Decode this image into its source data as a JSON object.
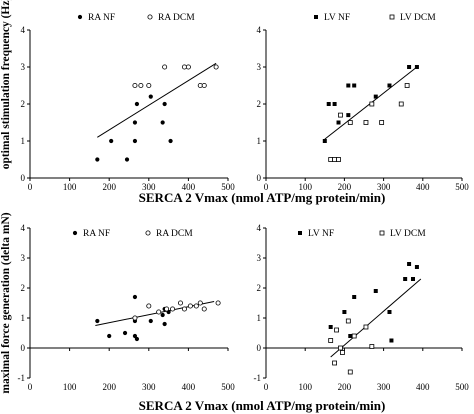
{
  "figure": {
    "x_axis_label_top": "SERCA 2 Vmax (nmol ATP/mg protein/min)",
    "x_axis_label_bottom": "SERCA 2 Vmax (nmol ATP/mg protein/min)",
    "y_axis_label_top": "optimal stimulation frequency (Hz)",
    "y_axis_label_bottom": "maximal force generation (delta mN)"
  },
  "chart_data": [
    {
      "type": "scatter",
      "panel": "top-left",
      "xlim": [
        0,
        500
      ],
      "ylim": [
        0,
        4
      ],
      "x_ticks": [
        "0",
        "100",
        "200",
        "300",
        "400",
        "500"
      ],
      "y_ticks": [
        "0",
        "1",
        "2",
        "3",
        "4"
      ],
      "legend": [
        "RA NF",
        "RA DCM"
      ],
      "series": [
        {
          "name": "RA NF",
          "marker": "filled-circle",
          "points": [
            [
              170,
              0.5
            ],
            [
              205,
              1.0
            ],
            [
              245,
              0.5
            ],
            [
              265,
              1.0
            ],
            [
              265,
              1.5
            ],
            [
              270,
              2.0
            ],
            [
              305,
              2.2
            ],
            [
              335,
              1.5
            ],
            [
              340,
              2.0
            ],
            [
              355,
              1.0
            ]
          ]
        },
        {
          "name": "RA DCM",
          "marker": "open-circle",
          "points": [
            [
              265,
              2.5
            ],
            [
              280,
              2.5
            ],
            [
              300,
              2.5
            ],
            [
              340,
              3.0
            ],
            [
              390,
              3.0
            ],
            [
              400,
              3.0
            ],
            [
              430,
              2.5
            ],
            [
              440,
              2.5
            ],
            [
              470,
              3.0
            ]
          ]
        }
      ],
      "trendline": [
        [
          170,
          1.1
        ],
        [
          470,
          3.1
        ]
      ]
    },
    {
      "type": "scatter",
      "panel": "top-right",
      "xlim": [
        0,
        500
      ],
      "ylim": [
        0,
        4
      ],
      "x_ticks": [
        "0",
        "100",
        "200",
        "300",
        "400",
        "500"
      ],
      "y_ticks": [
        "0",
        "1",
        "2",
        "3",
        "4"
      ],
      "legend": [
        "LV NF",
        "LV DCM"
      ],
      "series": [
        {
          "name": "LV NF",
          "marker": "filled-square",
          "points": [
            [
              150,
              1.0
            ],
            [
              160,
              2.0
            ],
            [
              175,
              2.0
            ],
            [
              185,
              1.5
            ],
            [
              210,
              2.5
            ],
            [
              225,
              2.5
            ],
            [
              280,
              2.2
            ],
            [
              315,
              2.5
            ],
            [
              360,
              2.5
            ],
            [
              365,
              3.0
            ],
            [
              385,
              3.0
            ],
            [
              210,
              1.7
            ]
          ]
        },
        {
          "name": "LV DCM",
          "marker": "open-square",
          "points": [
            [
              165,
              0.5
            ],
            [
              175,
              0.5
            ],
            [
              185,
              0.5
            ],
            [
              190,
              1.7
            ],
            [
              215,
              1.5
            ],
            [
              255,
              1.5
            ],
            [
              270,
              2.0
            ],
            [
              295,
              1.5
            ],
            [
              345,
              2.0
            ],
            [
              360,
              2.5
            ]
          ]
        }
      ],
      "trendline": [
        [
          150,
          1.05
        ],
        [
          385,
          3.0
        ]
      ]
    },
    {
      "type": "scatter",
      "panel": "bottom-left",
      "xlim": [
        0,
        500
      ],
      "ylim": [
        -1,
        4
      ],
      "x_ticks": [
        "0",
        "100",
        "200",
        "300",
        "400",
        "500"
      ],
      "y_ticks": [
        "-1",
        "0",
        "1",
        "2",
        "3",
        "4"
      ],
      "legend": [
        "RA NF",
        "RA DCM"
      ],
      "series": [
        {
          "name": "RA NF",
          "marker": "filled-circle",
          "points": [
            [
              170,
              0.9
            ],
            [
              200,
              0.4
            ],
            [
              240,
              0.5
            ],
            [
              265,
              0.9
            ],
            [
              265,
              1.7
            ],
            [
              265,
              0.4
            ],
            [
              270,
              0.3
            ],
            [
              305,
              0.9
            ],
            [
              335,
              1.1
            ],
            [
              340,
              1.3
            ],
            [
              340,
              0.8
            ],
            [
              350,
              1.2
            ]
          ]
        },
        {
          "name": "RA DCM",
          "marker": "open-circle",
          "points": [
            [
              265,
              1.0
            ],
            [
              300,
              1.4
            ],
            [
              325,
              1.2
            ],
            [
              345,
              1.3
            ],
            [
              360,
              1.3
            ],
            [
              380,
              1.5
            ],
            [
              390,
              1.3
            ],
            [
              405,
              1.4
            ],
            [
              420,
              1.4
            ],
            [
              430,
              1.5
            ],
            [
              440,
              1.3
            ],
            [
              475,
              1.5
            ]
          ]
        }
      ],
      "trendline": [
        [
          165,
          0.75
        ],
        [
          465,
          1.55
        ]
      ]
    },
    {
      "type": "scatter",
      "panel": "bottom-right",
      "xlim": [
        0,
        500
      ],
      "ylim": [
        -1,
        4
      ],
      "x_ticks": [
        "0",
        "100",
        "200",
        "300",
        "400",
        "500"
      ],
      "y_ticks": [
        "-1",
        "0",
        "1",
        "2",
        "3",
        "4"
      ],
      "legend": [
        "LV NF",
        "LV DCM"
      ],
      "series": [
        {
          "name": "LV NF",
          "marker": "filled-square",
          "points": [
            [
              165,
              0.7
            ],
            [
              200,
              1.2
            ],
            [
              215,
              0.4
            ],
            [
              225,
              1.7
            ],
            [
              280,
              1.9
            ],
            [
              315,
              1.2
            ],
            [
              320,
              0.25
            ],
            [
              355,
              2.3
            ],
            [
              365,
              2.8
            ],
            [
              375,
              2.3
            ],
            [
              385,
              2.7
            ]
          ]
        },
        {
          "name": "LV DCM",
          "marker": "open-square",
          "points": [
            [
              165,
              0.25
            ],
            [
              175,
              -0.5
            ],
            [
              180,
              0.6
            ],
            [
              190,
              0.0
            ],
            [
              195,
              -0.15
            ],
            [
              210,
              0.9
            ],
            [
              215,
              -0.8
            ],
            [
              225,
              0.4
            ],
            [
              255,
              0.7
            ],
            [
              270,
              0.05
            ]
          ]
        }
      ],
      "trendline": [
        [
          165,
          -0.3
        ],
        [
          395,
          2.3
        ]
      ]
    }
  ]
}
